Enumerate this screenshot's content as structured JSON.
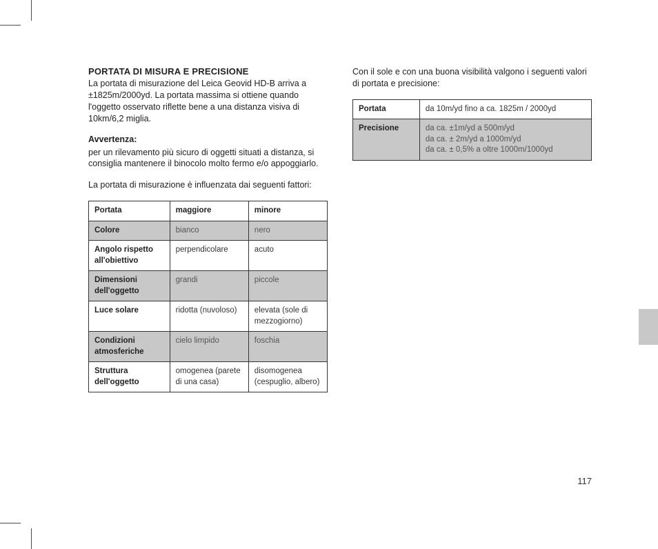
{
  "page_number": "117",
  "colors": {
    "text": "#222222",
    "border": "#333333",
    "shaded_row": "#c8c8c8",
    "tab": "#c8c8c8",
    "background": "#ffffff"
  },
  "left": {
    "heading": "PORTATA DI MISURA E PRECISIONE",
    "p1": "La portata di misurazione del Leica Geovid HD-B arriva a ±1825m/2000yd. La portata massima si ottiene quando l'oggetto osservato riflette bene a una distanza visiva di 10km/6,2 miglia.",
    "warn_label": "Avvertenza:",
    "p2": "per un rilevamento più sicuro di oggetti situati a distanza, si consiglia mantenere il binocolo molto fermo e/o appoggiarlo.",
    "p3": "La portata di misurazione è influenzata dai seguenti fattori:",
    "table": {
      "header": {
        "c0": "Portata",
        "c1": "maggiore",
        "c2": "minore"
      },
      "rows": [
        {
          "shaded": true,
          "c0": "Colore",
          "c1": "bianco",
          "c2": "nero"
        },
        {
          "shaded": false,
          "c0": "Angolo rispetto all'obiettivo",
          "c1": "perpendicolare",
          "c2": "acuto"
        },
        {
          "shaded": true,
          "c0": "Dimensioni dell'oggetto",
          "c1": "grandi",
          "c2": "piccole"
        },
        {
          "shaded": false,
          "c0": "Luce solare",
          "c1": "ridotta (nuvoloso)",
          "c2": "elevata (sole di mezzogiorno)"
        },
        {
          "shaded": true,
          "c0": "Condizioni atmosferiche",
          "c1": "cielo limpido",
          "c2": "foschia"
        },
        {
          "shaded": false,
          "c0": "Struttura dell'oggetto",
          "c1": "omogenea (parete di una casa)",
          "c2": "disomogenea (cespuglio, albero)"
        }
      ],
      "col_widths": [
        "34%",
        "33%",
        "33%"
      ]
    }
  },
  "right": {
    "p1": "Con il sole e con una buona visibilità valgono i seguenti valori di portata e precisione:",
    "table": {
      "rows": [
        {
          "shaded": false,
          "c0": "Portata",
          "c1": "da 10m/yd fino a ca. 1825m / 2000yd"
        },
        {
          "shaded": true,
          "c0": "Precisione",
          "c1": "da ca. ±1m/yd a 500m/yd\nda ca. ± 2m/yd a 1000m/yd\nda ca. ± 0,5% a oltre 1000m/1000yd"
        }
      ],
      "col_widths": [
        "28%",
        "72%"
      ]
    }
  }
}
